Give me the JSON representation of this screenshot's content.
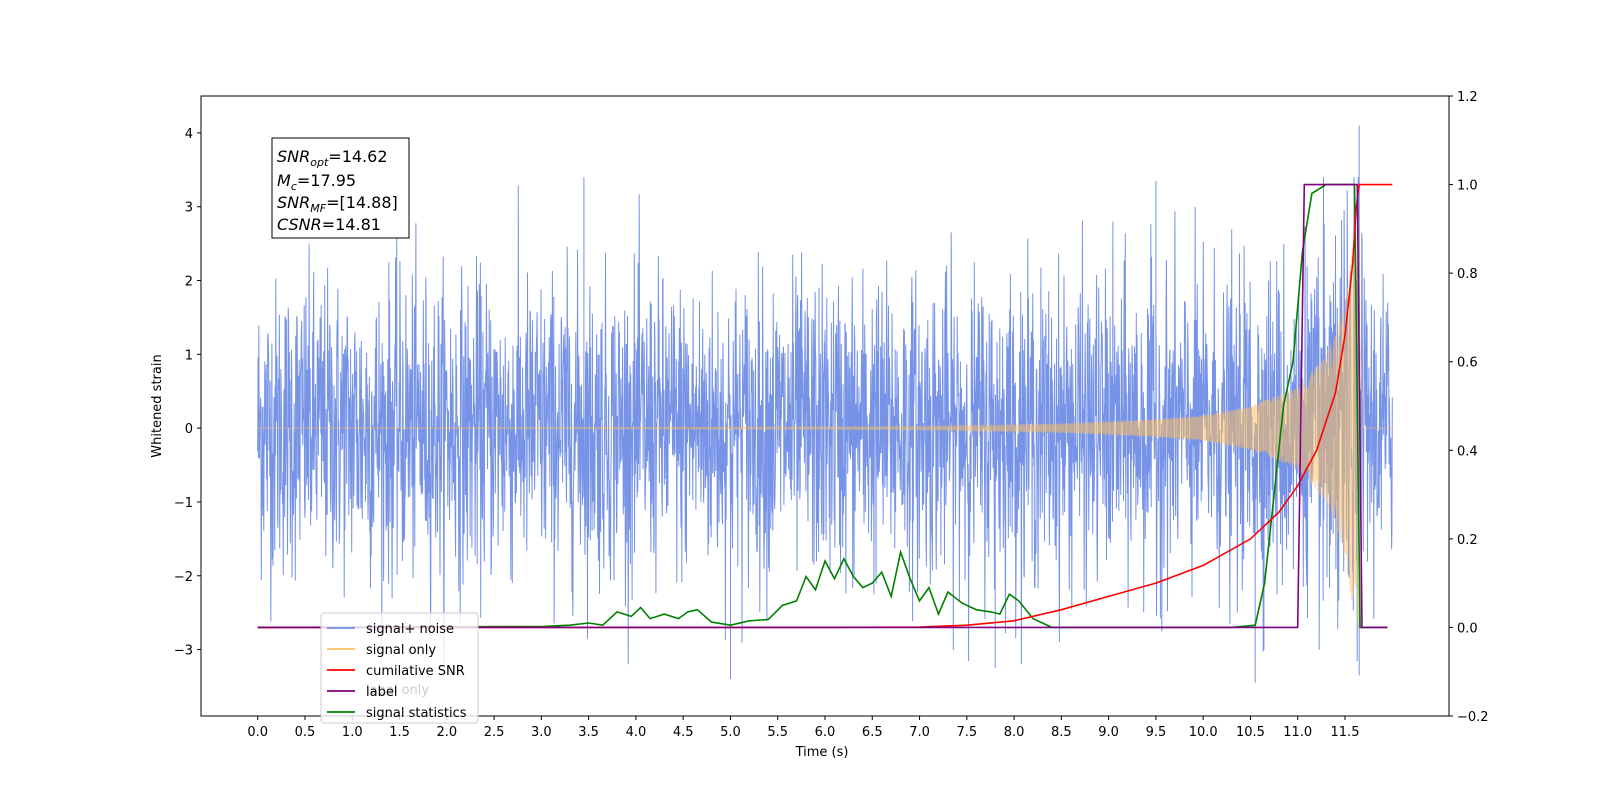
{
  "chart_data": {
    "type": "line",
    "xlabel": "Time (s)",
    "ylabel": "Whitened strain",
    "title": "",
    "xlim": [
      -0.6,
      12.6
    ],
    "ylim": [
      -3.9,
      4.5
    ],
    "y2lim": [
      -0.2,
      1.2
    ],
    "x_ticks": [
      0.0,
      0.5,
      1.0,
      1.5,
      2.0,
      2.5,
      3.0,
      3.5,
      4.0,
      4.5,
      5.0,
      5.5,
      6.0,
      6.5,
      7.0,
      7.5,
      8.0,
      8.5,
      9.0,
      9.5,
      10.0,
      10.5,
      11.0,
      11.5
    ],
    "x_tick_labels": [
      "0.0",
      "0.5",
      "1.0",
      "1.5",
      "2.0",
      "2.5",
      "3.0",
      "3.5",
      "4.0",
      "4.5",
      "5.0",
      "5.5",
      "6.0",
      "6.5",
      "7.0",
      "7.5",
      "8.0",
      "8.5",
      "9.0",
      "9.5",
      "10.0",
      "10.5",
      "11.0",
      "11.5"
    ],
    "y_ticks": [
      -3,
      -2,
      -1,
      0,
      1,
      2,
      3,
      4
    ],
    "y_tick_labels": [
      "−3",
      "−2",
      "−1",
      "0",
      "1",
      "2",
      "3",
      "4"
    ],
    "y2_ticks": [
      -0.2,
      0.0,
      0.2,
      0.4,
      0.6,
      0.8,
      1.0,
      1.2
    ],
    "y2_tick_labels": [
      "−0.2",
      "0.0",
      "0.2",
      "0.4",
      "0.6",
      "0.8",
      "1.0",
      "1.2"
    ],
    "grid": false,
    "legend_placement": "lower-left",
    "legend": [
      {
        "label": "signal+ noise",
        "color": "#6f8de6"
      },
      {
        "label": "signal only",
        "color": "#ffbf60"
      },
      {
        "label": "cumilative SNR",
        "color": "#ff0000"
      },
      {
        "label": "label",
        "color": "#800080"
      },
      {
        "label": "signal statistics",
        "color": "#008000"
      }
    ],
    "hidden_legend_text": "label only",
    "info_box": {
      "snr_opt": {
        "name": "SNR",
        "sub": "opt",
        "value": "=14.62"
      },
      "mc": {
        "name": "M",
        "sub": "c",
        "value": "=17.95"
      },
      "snr_mf": {
        "name": "SNR",
        "sub": "MF",
        "value": "=[14.88]"
      },
      "csnr": {
        "name": "CSNR",
        "sub": "",
        "value": "=14.81"
      }
    },
    "series": [
      {
        "name": "signal+ noise",
        "axis": "left",
        "color": "#6f8de6",
        "kind": "noise",
        "x_range": [
          0.0,
          12.0
        ],
        "noise_std": 1.0,
        "peaks": [
          [
            11.65,
            4.1
          ],
          [
            11.65,
            -3.35
          ],
          [
            5.0,
            -3.4
          ],
          [
            10.55,
            -3.45
          ],
          [
            3.45,
            3.4
          ],
          [
            9.5,
            3.35
          ],
          [
            7.8,
            -3.25
          ]
        ]
      },
      {
        "name": "signal only",
        "axis": "left",
        "color": "#ffbf60",
        "kind": "chirp",
        "x_range": [
          0.0,
          12.0
        ],
        "merger_time": 11.65,
        "envelope": [
          [
            0.0,
            0.0
          ],
          [
            7.0,
            0.02
          ],
          [
            8.5,
            0.06
          ],
          [
            9.5,
            0.12
          ],
          [
            10.0,
            0.17
          ],
          [
            10.5,
            0.3
          ],
          [
            11.0,
            0.55
          ],
          [
            11.3,
            1.0
          ],
          [
            11.5,
            1.7
          ],
          [
            11.6,
            2.6
          ],
          [
            11.65,
            2.9
          ]
        ]
      },
      {
        "name": "cumilative SNR",
        "axis": "right",
        "color": "#ff0000",
        "points": [
          [
            0.0,
            0.0
          ],
          [
            6.0,
            0.0
          ],
          [
            7.0,
            0.001
          ],
          [
            7.5,
            0.005
          ],
          [
            8.0,
            0.015
          ],
          [
            8.5,
            0.04
          ],
          [
            9.0,
            0.07
          ],
          [
            9.5,
            0.1
          ],
          [
            10.0,
            0.14
          ],
          [
            10.5,
            0.2
          ],
          [
            10.8,
            0.26
          ],
          [
            11.0,
            0.32
          ],
          [
            11.2,
            0.4
          ],
          [
            11.4,
            0.53
          ],
          [
            11.5,
            0.66
          ],
          [
            11.58,
            0.82
          ],
          [
            11.62,
            0.95
          ],
          [
            11.65,
            1.0
          ],
          [
            12.0,
            1.0
          ]
        ]
      },
      {
        "name": "label",
        "axis": "right",
        "color": "#800080",
        "points": [
          [
            0.0,
            0.0
          ],
          [
            11.0,
            0.0
          ],
          [
            11.07,
            1.0
          ],
          [
            11.63,
            1.0
          ],
          [
            11.68,
            0.0
          ],
          [
            11.95,
            0.0
          ]
        ]
      },
      {
        "name": "signal statistics",
        "axis": "right",
        "color": "#008000",
        "points": [
          [
            0.0,
            0.0
          ],
          [
            3.0,
            0.002
          ],
          [
            3.3,
            0.005
          ],
          [
            3.5,
            0.01
          ],
          [
            3.65,
            0.005
          ],
          [
            3.8,
            0.035
          ],
          [
            3.95,
            0.025
          ],
          [
            4.05,
            0.045
          ],
          [
            4.15,
            0.02
          ],
          [
            4.3,
            0.03
          ],
          [
            4.45,
            0.02
          ],
          [
            4.55,
            0.035
          ],
          [
            4.65,
            0.04
          ],
          [
            4.8,
            0.012
          ],
          [
            5.0,
            0.005
          ],
          [
            5.2,
            0.015
          ],
          [
            5.4,
            0.018
          ],
          [
            5.55,
            0.05
          ],
          [
            5.7,
            0.06
          ],
          [
            5.8,
            0.115
          ],
          [
            5.9,
            0.085
          ],
          [
            6.0,
            0.15
          ],
          [
            6.1,
            0.11
          ],
          [
            6.2,
            0.155
          ],
          [
            6.3,
            0.115
          ],
          [
            6.4,
            0.09
          ],
          [
            6.5,
            0.1
          ],
          [
            6.6,
            0.125
          ],
          [
            6.7,
            0.07
          ],
          [
            6.8,
            0.17
          ],
          [
            6.9,
            0.11
          ],
          [
            7.0,
            0.06
          ],
          [
            7.1,
            0.09
          ],
          [
            7.2,
            0.03
          ],
          [
            7.3,
            0.08
          ],
          [
            7.45,
            0.055
          ],
          [
            7.6,
            0.04
          ],
          [
            7.75,
            0.035
          ],
          [
            7.85,
            0.03
          ],
          [
            7.95,
            0.075
          ],
          [
            8.05,
            0.06
          ],
          [
            8.2,
            0.02
          ],
          [
            8.4,
            0.0
          ],
          [
            10.3,
            0.0
          ],
          [
            10.55,
            0.005
          ],
          [
            10.65,
            0.1
          ],
          [
            10.75,
            0.3
          ],
          [
            10.85,
            0.5
          ],
          [
            10.95,
            0.6
          ],
          [
            11.05,
            0.85
          ],
          [
            11.15,
            0.98
          ],
          [
            11.3,
            1.0
          ],
          [
            11.6,
            1.0
          ],
          [
            11.66,
            0.0
          ],
          [
            11.95,
            0.0
          ]
        ]
      }
    ]
  }
}
